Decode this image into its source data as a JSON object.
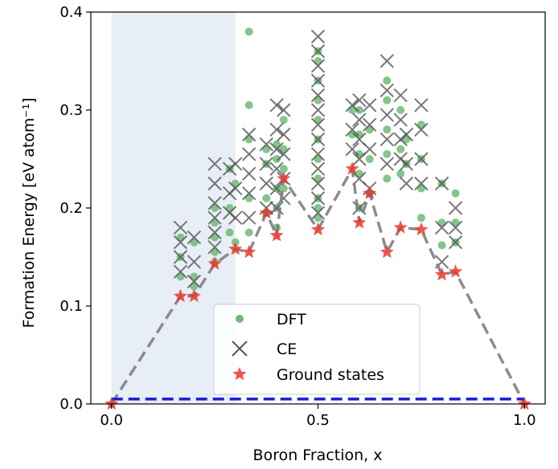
{
  "chart_data": {
    "type": "scatter",
    "xlabel": "Boron Fraction, x",
    "ylabel": "Formation Energy [eV atom⁻¹]",
    "xlim": [
      -0.05,
      1.05
    ],
    "ylim": [
      0.0,
      0.4
    ],
    "x_ticks": [
      {
        "value": 0.0,
        "label": "0.0"
      },
      {
        "value": 0.5,
        "label": "0.5"
      },
      {
        "value": 1.0,
        "label": "1.0"
      }
    ],
    "y_ticks": [
      {
        "value": 0.0,
        "label": "0.0"
      },
      {
        "value": 0.1,
        "label": "0.1"
      },
      {
        "value": 0.2,
        "label": "0.2"
      },
      {
        "value": 0.3,
        "label": "0.3"
      },
      {
        "value": 0.4,
        "label": "0.4"
      }
    ],
    "shaded_region": {
      "x": [
        0.0,
        0.3
      ],
      "color": "#e8eef6"
    },
    "legend": {
      "position": "bottom-center",
      "entries": [
        "DFT",
        "CE",
        "Ground states"
      ]
    },
    "series": [
      {
        "name": "DFT",
        "marker": "circle",
        "color": "#6dbb75",
        "x": [
          0.167,
          0.167,
          0.167,
          0.2,
          0.2,
          0.2,
          0.25,
          0.25,
          0.25,
          0.25,
          0.25,
          0.286,
          0.286,
          0.286,
          0.3,
          0.3,
          0.333,
          0.333,
          0.333,
          0.333,
          0.333,
          0.375,
          0.375,
          0.375,
          0.375,
          0.4,
          0.4,
          0.4,
          0.4,
          0.4,
          0.417,
          0.417,
          0.417,
          0.417,
          0.5,
          0.5,
          0.5,
          0.5,
          0.5,
          0.5,
          0.5,
          0.5,
          0.5,
          0.5,
          0.5,
          0.583,
          0.583,
          0.6,
          0.6,
          0.6,
          0.6,
          0.6,
          0.625,
          0.625,
          0.625,
          0.667,
          0.667,
          0.667,
          0.667,
          0.667,
          0.7,
          0.7,
          0.7,
          0.714,
          0.714,
          0.75,
          0.75,
          0.75,
          0.75,
          0.8,
          0.8,
          0.8,
          0.833,
          0.833,
          0.833
        ],
        "y": [
          0.17,
          0.15,
          0.13,
          0.165,
          0.13,
          0.12,
          0.2,
          0.185,
          0.17,
          0.155,
          0.145,
          0.24,
          0.2,
          0.175,
          0.225,
          0.165,
          0.38,
          0.305,
          0.27,
          0.21,
          0.175,
          0.26,
          0.245,
          0.21,
          0.195,
          0.265,
          0.25,
          0.22,
          0.2,
          0.18,
          0.29,
          0.26,
          0.24,
          0.22,
          0.36,
          0.35,
          0.33,
          0.31,
          0.29,
          0.27,
          0.25,
          0.23,
          0.21,
          0.2,
          0.19,
          0.3,
          0.275,
          0.3,
          0.275,
          0.255,
          0.235,
          0.2,
          0.28,
          0.25,
          0.215,
          0.33,
          0.31,
          0.28,
          0.255,
          0.23,
          0.3,
          0.26,
          0.235,
          0.27,
          0.245,
          0.285,
          0.25,
          0.22,
          0.19,
          0.225,
          0.185,
          0.162,
          0.215,
          0.185,
          0.165
        ]
      },
      {
        "name": "CE",
        "marker": "x",
        "color": "#555555",
        "x": [
          0.167,
          0.167,
          0.167,
          0.167,
          0.2,
          0.2,
          0.2,
          0.25,
          0.25,
          0.25,
          0.25,
          0.25,
          0.25,
          0.286,
          0.286,
          0.286,
          0.3,
          0.3,
          0.3,
          0.333,
          0.333,
          0.333,
          0.333,
          0.333,
          0.375,
          0.375,
          0.375,
          0.375,
          0.4,
          0.4,
          0.4,
          0.4,
          0.4,
          0.4,
          0.417,
          0.417,
          0.417,
          0.417,
          0.417,
          0.5,
          0.5,
          0.5,
          0.5,
          0.5,
          0.5,
          0.5,
          0.5,
          0.5,
          0.5,
          0.5,
          0.5,
          0.5,
          0.583,
          0.583,
          0.583,
          0.6,
          0.6,
          0.6,
          0.6,
          0.6,
          0.6,
          0.625,
          0.625,
          0.625,
          0.625,
          0.667,
          0.667,
          0.667,
          0.667,
          0.667,
          0.7,
          0.7,
          0.7,
          0.7,
          0.714,
          0.714,
          0.714,
          0.75,
          0.75,
          0.75,
          0.75,
          0.8,
          0.8,
          0.8,
          0.833,
          0.833,
          0.833
        ],
        "y": [
          0.18,
          0.165,
          0.15,
          0.135,
          0.17,
          0.145,
          0.125,
          0.245,
          0.225,
          0.205,
          0.19,
          0.175,
          0.16,
          0.24,
          0.215,
          0.195,
          0.245,
          0.22,
          0.19,
          0.275,
          0.255,
          0.235,
          0.215,
          0.19,
          0.265,
          0.245,
          0.225,
          0.2,
          0.305,
          0.28,
          0.26,
          0.24,
          0.22,
          0.2,
          0.3,
          0.275,
          0.255,
          0.23,
          0.21,
          0.375,
          0.36,
          0.345,
          0.33,
          0.315,
          0.3,
          0.285,
          0.27,
          0.255,
          0.24,
          0.225,
          0.21,
          0.195,
          0.305,
          0.28,
          0.26,
          0.31,
          0.29,
          0.27,
          0.25,
          0.23,
          0.2,
          0.305,
          0.285,
          0.26,
          0.22,
          0.35,
          0.32,
          0.295,
          0.27,
          0.245,
          0.315,
          0.29,
          0.27,
          0.25,
          0.275,
          0.245,
          0.225,
          0.305,
          0.28,
          0.25,
          0.225,
          0.225,
          0.18,
          0.145,
          0.2,
          0.18,
          0.165
        ]
      },
      {
        "name": "Ground states",
        "marker": "star",
        "color": "#e8392f",
        "x": [
          0.0,
          0.167,
          0.2,
          0.25,
          0.3,
          0.333,
          0.375,
          0.4,
          0.417,
          0.5,
          0.583,
          0.6,
          0.625,
          0.667,
          0.7,
          0.75,
          0.8,
          0.833,
          1.0
        ],
        "y": [
          0.0,
          0.11,
          0.11,
          0.143,
          0.158,
          0.155,
          0.195,
          0.172,
          0.23,
          0.178,
          0.24,
          0.185,
          0.215,
          0.155,
          0.18,
          0.178,
          0.132,
          0.135,
          0.0
        ]
      }
    ],
    "lines": [
      {
        "name": "hull",
        "style": "dashed",
        "color": "#808080",
        "x": [
          0.0,
          0.167,
          0.2,
          0.25,
          0.3,
          0.333,
          0.375,
          0.4,
          0.417,
          0.5,
          0.583,
          0.6,
          0.625,
          0.667,
          0.7,
          0.75,
          0.8,
          0.833,
          1.0
        ],
        "y": [
          0.0,
          0.11,
          0.11,
          0.143,
          0.158,
          0.155,
          0.195,
          0.172,
          0.23,
          0.178,
          0.24,
          0.185,
          0.215,
          0.155,
          0.18,
          0.178,
          0.132,
          0.135,
          0.0
        ]
      },
      {
        "name": "reference",
        "style": "dashed",
        "color": "#1a1adb",
        "x": [
          0.0,
          1.0
        ],
        "y": [
          0.005,
          0.005
        ]
      }
    ]
  }
}
